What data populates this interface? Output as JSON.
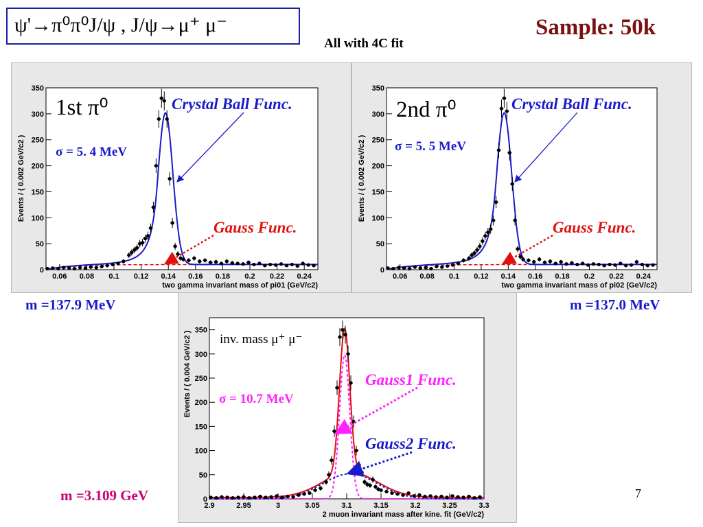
{
  "slide": {
    "title": "ψ'→π⁰π⁰J/ψ , J/ψ→μ⁺ μ⁻",
    "sample": "Sample: 50k",
    "subtitle": "All with 4C fit",
    "page": "7"
  },
  "colors": {
    "blue_curve": "#1a1acc",
    "red_curve": "#e01010",
    "magenta": "#ff22ff",
    "panel_bg": "#e8e8e8"
  },
  "plot1": {
    "label": "1st π⁰",
    "sigma": "σ = 5. 4 MeV",
    "cb_label": "Crystal Ball Func.",
    "gauss_label": "Gauss Func.",
    "mass": "m =137.9 MeV",
    "ylabel": "Events / ( 0.002 GeV/c2 )",
    "xlabel": "two gamma invariant mass of pi01 (GeV/c2)"
  },
  "plot2": {
    "label": "2nd π⁰",
    "sigma": "σ = 5. 5 MeV",
    "cb_label": "Crystal Ball Func.",
    "gauss_label": "Gauss Func.",
    "mass": "m =137.0 MeV",
    "ylabel": "Events / ( 0.002 GeV/c2 )",
    "xlabel": "two gamma invariant mass of pi02 (GeV/c2)"
  },
  "plot3": {
    "label": "inv. mass μ⁺ μ⁻",
    "sigma": "σ = 10.7 MeV",
    "g1_label": "Gauss1 Func.",
    "g2_label": "Gauss2 Func.",
    "mass": "m =3.109 GeV",
    "ylabel": "Events / ( 0.004 GeV/c2 )",
    "xlabel": "2 muon invariant mass after kine. fit (GeV/c2)"
  },
  "chart_data": [
    {
      "type": "scatter",
      "xlim": [
        0.05,
        0.25
      ],
      "ylim": [
        0,
        350
      ],
      "xticks": [
        "0.06",
        "0.08",
        "0.1",
        "0.12",
        "0.14",
        "0.16",
        "0.18",
        "0.2",
        "0.22",
        "0.24"
      ],
      "yticks": [
        "0",
        "50",
        "100",
        "150",
        "200",
        "250",
        "300",
        "350"
      ],
      "series": [
        {
          "x": [
            0.051,
            0.055,
            0.059,
            0.063,
            0.067,
            0.071,
            0.075,
            0.079,
            0.083,
            0.087,
            0.091,
            0.095,
            0.099,
            0.103,
            0.107,
            0.111,
            0.113,
            0.115,
            0.117,
            0.119,
            0.121,
            0.123,
            0.125,
            0.127,
            0.129,
            0.131,
            0.133,
            0.135,
            0.137,
            0.139,
            0.141,
            0.143,
            0.145,
            0.147,
            0.149,
            0.151,
            0.155,
            0.159,
            0.163,
            0.167,
            0.171,
            0.175,
            0.179,
            0.183,
            0.187,
            0.191,
            0.195,
            0.199,
            0.203,
            0.207,
            0.211,
            0.215,
            0.219,
            0.223,
            0.227,
            0.231,
            0.235,
            0.239,
            0.243,
            0.247
          ],
          "y": [
            2,
            3,
            2,
            4,
            3,
            2,
            4,
            3,
            5,
            4,
            6,
            8,
            10,
            12,
            16,
            28,
            33,
            38,
            42,
            50,
            52,
            60,
            65,
            80,
            120,
            200,
            290,
            330,
            325,
            290,
            175,
            90,
            45,
            30,
            22,
            20,
            18,
            22,
            16,
            18,
            14,
            15,
            12,
            16,
            13,
            12,
            11,
            14,
            10,
            12,
            8,
            10,
            9,
            11,
            8,
            10,
            7,
            12,
            9,
            8
          ]
        }
      ]
    },
    {
      "type": "scatter",
      "xlim": [
        0.05,
        0.25
      ],
      "ylim": [
        0,
        350
      ],
      "xticks": [
        "0.06",
        "0.08",
        "0.1",
        "0.12",
        "0.14",
        "0.16",
        "0.18",
        "0.2",
        "0.22",
        "0.24"
      ],
      "yticks": [
        "0",
        "50",
        "100",
        "150",
        "200",
        "250",
        "300",
        "350"
      ],
      "series": [
        {
          "x": [
            0.051,
            0.055,
            0.059,
            0.063,
            0.067,
            0.071,
            0.075,
            0.079,
            0.083,
            0.087,
            0.091,
            0.095,
            0.099,
            0.103,
            0.107,
            0.111,
            0.113,
            0.115,
            0.117,
            0.119,
            0.121,
            0.123,
            0.125,
            0.127,
            0.129,
            0.131,
            0.133,
            0.135,
            0.137,
            0.139,
            0.141,
            0.143,
            0.145,
            0.147,
            0.149,
            0.151,
            0.155,
            0.159,
            0.163,
            0.167,
            0.171,
            0.175,
            0.179,
            0.183,
            0.187,
            0.191,
            0.195,
            0.199,
            0.203,
            0.207,
            0.211,
            0.215,
            0.219,
            0.223,
            0.227,
            0.231,
            0.235,
            0.239,
            0.243,
            0.247
          ],
          "y": [
            3,
            2,
            4,
            3,
            2,
            5,
            3,
            4,
            2,
            6,
            5,
            7,
            9,
            12,
            18,
            22,
            28,
            32,
            38,
            45,
            55,
            65,
            72,
            78,
            95,
            130,
            230,
            310,
            330,
            305,
            225,
            165,
            95,
            40,
            25,
            20,
            18,
            15,
            20,
            14,
            16,
            12,
            15,
            11,
            13,
            10,
            12,
            9,
            11,
            10,
            8,
            10,
            9,
            12,
            8,
            9,
            15,
            10,
            8,
            9
          ]
        }
      ]
    },
    {
      "type": "scatter",
      "xlim": [
        2.9,
        3.3
      ],
      "ylim": [
        0,
        375
      ],
      "xticks": [
        "2.9",
        "2.95",
        "3",
        "3.05",
        "3.1",
        "3.15",
        "3.2",
        "3.25",
        "3.3"
      ],
      "yticks": [
        "0",
        "50",
        "100",
        "150",
        "200",
        "250",
        "300",
        "350"
      ],
      "series": [
        {
          "x": [
            2.902,
            2.91,
            2.918,
            2.926,
            2.934,
            2.942,
            2.95,
            2.958,
            2.966,
            2.974,
            2.982,
            2.99,
            2.998,
            3.006,
            3.014,
            3.022,
            3.03,
            3.038,
            3.046,
            3.054,
            3.062,
            3.07,
            3.074,
            3.078,
            3.082,
            3.086,
            3.09,
            3.094,
            3.098,
            3.102,
            3.106,
            3.11,
            3.114,
            3.118,
            3.122,
            3.126,
            3.13,
            3.134,
            3.138,
            3.142,
            3.146,
            3.15,
            3.158,
            3.166,
            3.174,
            3.182,
            3.19,
            3.198,
            3.206,
            3.214,
            3.222,
            3.23,
            3.238,
            3.246,
            3.254,
            3.262,
            3.27,
            3.278,
            3.286,
            3.294
          ],
          "y": [
            3,
            2,
            4,
            3,
            2,
            3,
            4,
            2,
            3,
            5,
            3,
            4,
            6,
            3,
            5,
            4,
            8,
            10,
            12,
            18,
            22,
            35,
            50,
            80,
            140,
            230,
            335,
            350,
            340,
            300,
            240,
            160,
            100,
            70,
            55,
            35,
            30,
            28,
            40,
            25,
            20,
            18,
            15,
            12,
            10,
            8,
            12,
            6,
            8,
            5,
            6,
            4,
            5,
            3,
            6,
            4,
            3,
            5,
            2,
            4
          ]
        }
      ]
    }
  ]
}
